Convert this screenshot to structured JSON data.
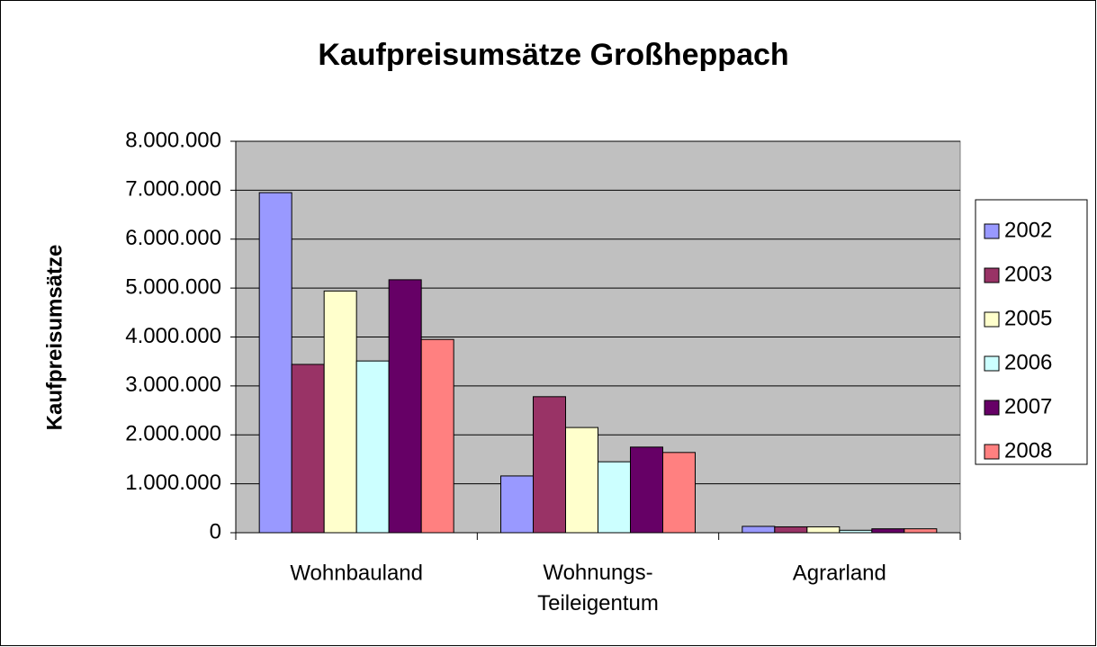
{
  "chart_data": {
    "type": "bar",
    "title": "Kaufpreisumsätze Großheppach",
    "y_label": "Kaufpreisumsätze",
    "categories": [
      "Wohnbauland",
      "Wohnungs-\nTeileigentum",
      "Agrarland"
    ],
    "series": [
      {
        "name": "2002",
        "color": "#9999ff",
        "values": [
          6950000,
          1160000,
          130000
        ]
      },
      {
        "name": "2003",
        "color": "#993366",
        "values": [
          3440000,
          2780000,
          120000
        ]
      },
      {
        "name": "2005",
        "color": "#ffffcc",
        "values": [
          4940000,
          2150000,
          120000
        ]
      },
      {
        "name": "2006",
        "color": "#ccffff",
        "values": [
          3510000,
          1450000,
          50000
        ]
      },
      {
        "name": "2007",
        "color": "#660066",
        "values": [
          5170000,
          1750000,
          80000
        ]
      },
      {
        "name": "2008",
        "color": "#ff8080",
        "values": [
          3950000,
          1640000,
          80000
        ]
      }
    ],
    "ylim": [
      0,
      8000000
    ],
    "yticks": [
      0,
      {
        "value": 1000000,
        "label": "1.000.000"
      },
      {
        "value": 2000000,
        "label": "2.000.000"
      },
      {
        "value": 3000000,
        "label": "3.000.000"
      },
      {
        "value": 4000000,
        "label": "4.000.000"
      },
      {
        "value": 5000000,
        "label": "5.000.000"
      },
      {
        "value": 6000000,
        "label": "6.000.000"
      },
      {
        "value": 7000000,
        "label": "7.000.000"
      },
      {
        "value": 8000000,
        "label": "8.000.000"
      }
    ],
    "grid": true,
    "legend": "right"
  }
}
